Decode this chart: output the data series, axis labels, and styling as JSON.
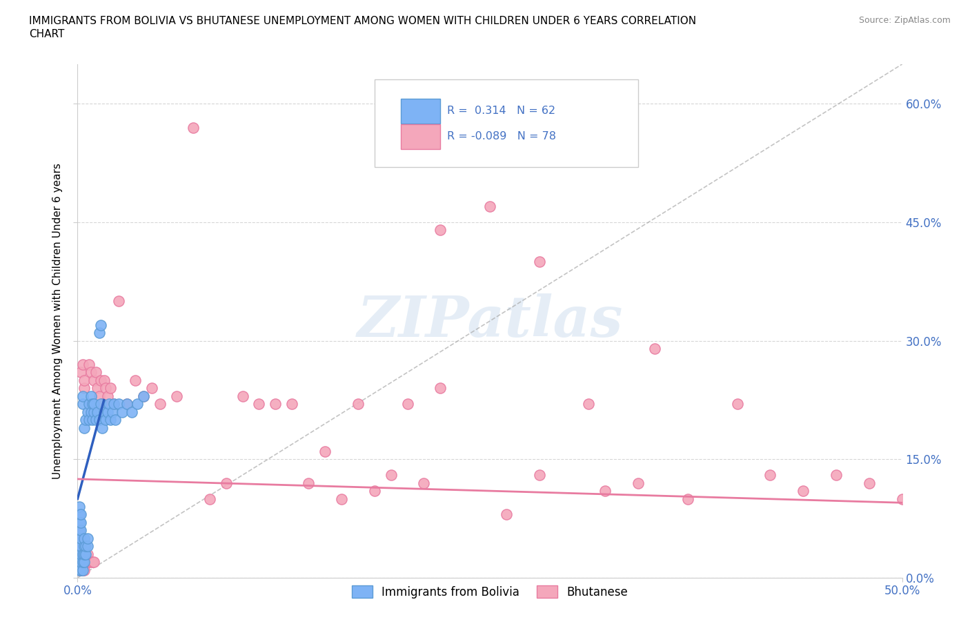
{
  "title_line1": "IMMIGRANTS FROM BOLIVIA VS BHUTANESE UNEMPLOYMENT AMONG WOMEN WITH CHILDREN UNDER 6 YEARS CORRELATION",
  "title_line2": "CHART",
  "source": "Source: ZipAtlas.com",
  "ylabel": "Unemployment Among Women with Children Under 6 years",
  "xlim": [
    0.0,
    0.5
  ],
  "ylim": [
    0.0,
    0.65
  ],
  "xtick_positions": [
    0.0,
    0.5
  ],
  "xticklabels": [
    "0.0%",
    "50.0%"
  ],
  "ytick_positions": [
    0.0,
    0.15,
    0.3,
    0.45,
    0.6
  ],
  "yticklabels_right": [
    "0.0%",
    "15.0%",
    "30.0%",
    "45.0%",
    "60.0%"
  ],
  "bolivia_color": "#7EB3F5",
  "bolivia_edge_color": "#5B9BD5",
  "bhutanese_color": "#F4A7BB",
  "bhutanese_edge_color": "#E87BA0",
  "bolivia_line_color": "#2E5FBF",
  "bhutanese_line_color": "#E87BA0",
  "tick_color": "#4472C4",
  "grid_color": "#CCCCCC",
  "watermark_color": "#DDDDDD",
  "watermark": "ZIPatlas",
  "bolivia_R": 0.314,
  "bolivia_N": 62,
  "bhutanese_R": -0.089,
  "bhutanese_N": 78,
  "legend_label1": "Immigrants from Bolivia",
  "legend_label2": "Bhutanese",
  "bolivia_x": [
    0.001,
    0.001,
    0.001,
    0.001,
    0.001,
    0.001,
    0.001,
    0.001,
    0.001,
    0.002,
    0.002,
    0.002,
    0.002,
    0.002,
    0.002,
    0.002,
    0.002,
    0.003,
    0.003,
    0.003,
    0.003,
    0.003,
    0.004,
    0.004,
    0.004,
    0.004,
    0.004,
    0.005,
    0.005,
    0.005,
    0.006,
    0.006,
    0.006,
    0.007,
    0.007,
    0.008,
    0.008,
    0.009,
    0.009,
    0.01,
    0.01,
    0.011,
    0.012,
    0.013,
    0.014,
    0.015,
    0.016,
    0.017,
    0.018,
    0.019,
    0.02,
    0.021,
    0.022,
    0.023,
    0.025,
    0.027,
    0.03,
    0.033,
    0.036,
    0.04,
    0.013,
    0.014
  ],
  "bolivia_y": [
    0.01,
    0.02,
    0.03,
    0.04,
    0.05,
    0.06,
    0.07,
    0.08,
    0.09,
    0.01,
    0.02,
    0.03,
    0.04,
    0.05,
    0.06,
    0.07,
    0.08,
    0.01,
    0.02,
    0.03,
    0.22,
    0.23,
    0.02,
    0.03,
    0.04,
    0.05,
    0.19,
    0.03,
    0.04,
    0.2,
    0.04,
    0.05,
    0.21,
    0.2,
    0.22,
    0.21,
    0.23,
    0.22,
    0.2,
    0.21,
    0.22,
    0.2,
    0.21,
    0.2,
    0.22,
    0.19,
    0.21,
    0.2,
    0.21,
    0.22,
    0.2,
    0.21,
    0.22,
    0.2,
    0.22,
    0.21,
    0.22,
    0.21,
    0.22,
    0.23,
    0.31,
    0.32
  ],
  "bhutanese_x": [
    0.001,
    0.001,
    0.001,
    0.001,
    0.001,
    0.001,
    0.002,
    0.002,
    0.002,
    0.002,
    0.002,
    0.003,
    0.003,
    0.003,
    0.003,
    0.004,
    0.004,
    0.004,
    0.005,
    0.005,
    0.006,
    0.006,
    0.007,
    0.007,
    0.008,
    0.008,
    0.009,
    0.01,
    0.01,
    0.011,
    0.012,
    0.013,
    0.014,
    0.015,
    0.016,
    0.017,
    0.018,
    0.02,
    0.022,
    0.025,
    0.03,
    0.035,
    0.04,
    0.045,
    0.05,
    0.06,
    0.07,
    0.08,
    0.09,
    0.1,
    0.12,
    0.14,
    0.16,
    0.18,
    0.2,
    0.22,
    0.25,
    0.28,
    0.31,
    0.34,
    0.37,
    0.4,
    0.42,
    0.44,
    0.46,
    0.48,
    0.5,
    0.35,
    0.28,
    0.22,
    0.32,
    0.26,
    0.15,
    0.17,
    0.19,
    0.21,
    0.13,
    0.11
  ],
  "bhutanese_y": [
    0.01,
    0.02,
    0.03,
    0.04,
    0.05,
    0.06,
    0.01,
    0.02,
    0.03,
    0.04,
    0.26,
    0.01,
    0.02,
    0.03,
    0.27,
    0.01,
    0.24,
    0.25,
    0.02,
    0.03,
    0.02,
    0.03,
    0.02,
    0.27,
    0.02,
    0.26,
    0.02,
    0.02,
    0.25,
    0.26,
    0.24,
    0.23,
    0.25,
    0.22,
    0.25,
    0.24,
    0.23,
    0.24,
    0.22,
    0.35,
    0.22,
    0.25,
    0.23,
    0.24,
    0.22,
    0.23,
    0.57,
    0.1,
    0.12,
    0.23,
    0.22,
    0.12,
    0.1,
    0.11,
    0.22,
    0.24,
    0.47,
    0.13,
    0.22,
    0.12,
    0.1,
    0.22,
    0.13,
    0.11,
    0.13,
    0.12,
    0.1,
    0.29,
    0.4,
    0.44,
    0.11,
    0.08,
    0.16,
    0.22,
    0.13,
    0.12,
    0.22,
    0.22
  ]
}
